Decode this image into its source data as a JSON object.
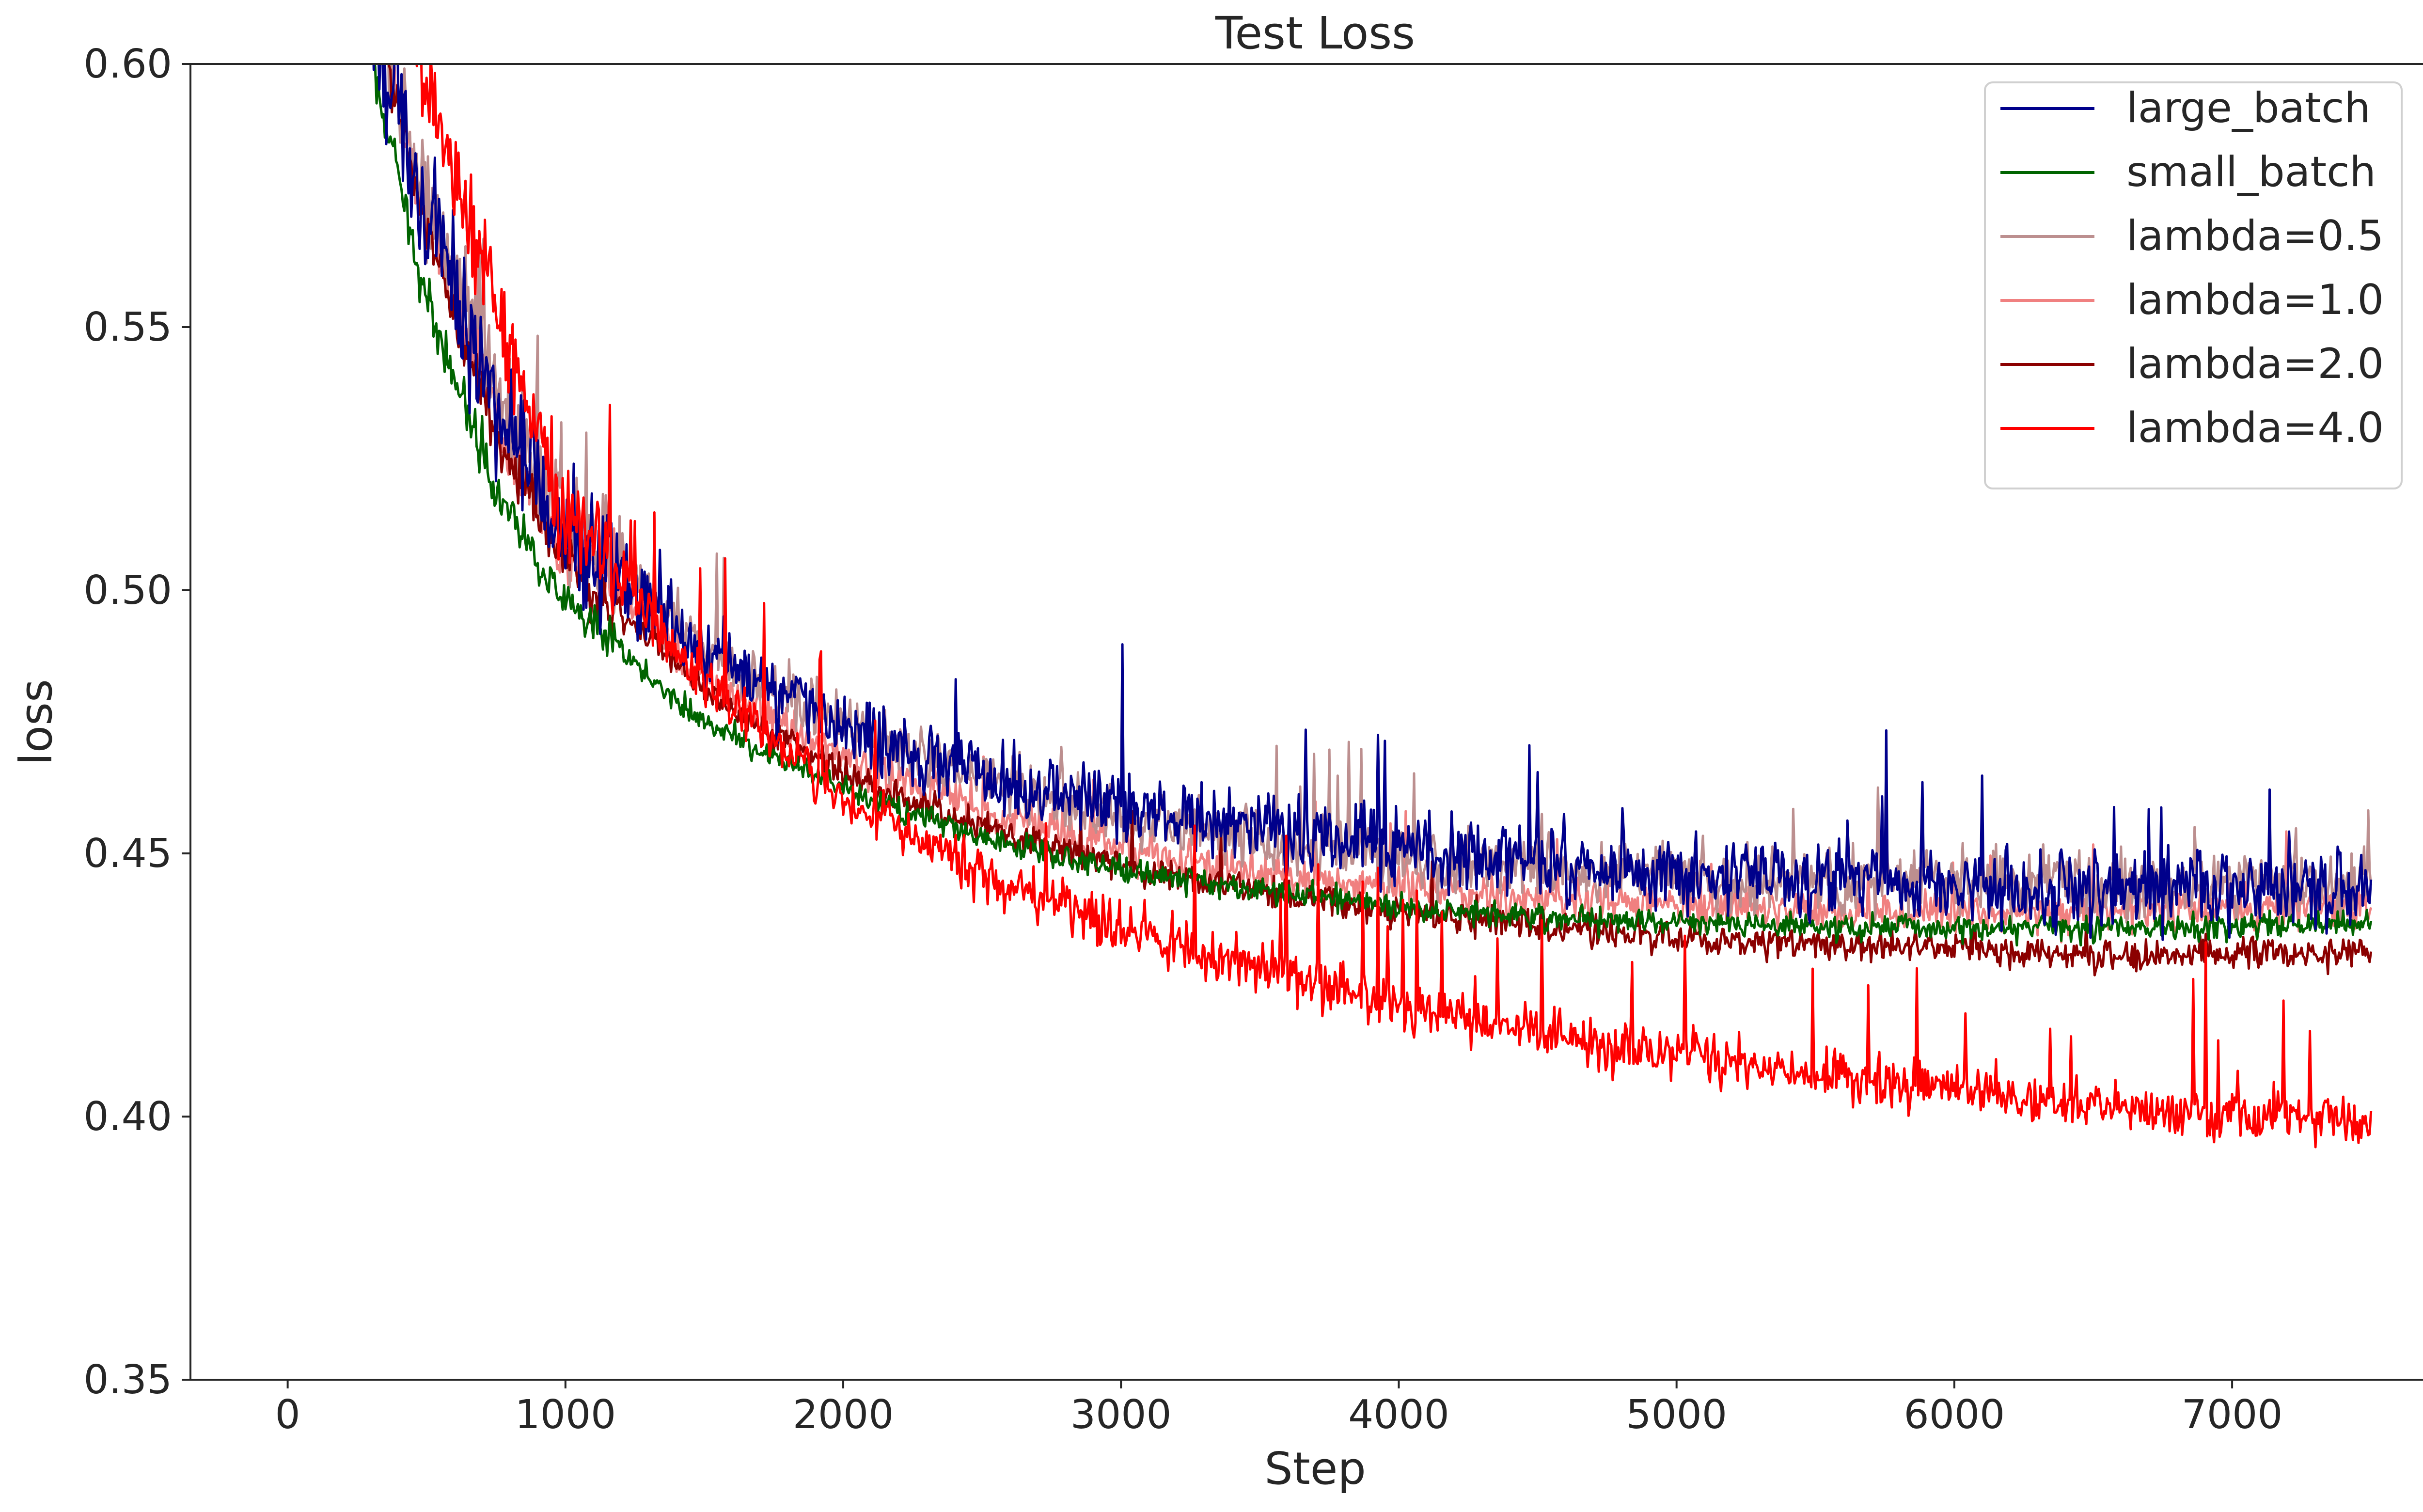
{
  "chart_data": {
    "type": "line",
    "title": "Test Loss",
    "xlabel": "Step",
    "ylabel": "loss",
    "xlim": [
      -350,
      7750
    ],
    "ylim": [
      0.35,
      0.6
    ],
    "xticks": [
      0,
      1000,
      2000,
      3000,
      4000,
      5000,
      6000,
      7000
    ],
    "xtick_labels": [
      "0",
      "1000",
      "2000",
      "3000",
      "4000",
      "5000",
      "6000",
      "7000"
    ],
    "yticks": [
      0.35,
      0.4,
      0.45,
      0.5,
      0.55,
      0.6
    ],
    "ytick_labels": [
      "0.35",
      "0.40",
      "0.45",
      "0.50",
      "0.55",
      "0.60"
    ],
    "grid": false,
    "legend_position": "top-right",
    "x_end": 7500,
    "series": [
      {
        "name": "large_batch",
        "color": "#00008b",
        "noise": 0.007,
        "spike_rate": 0.03,
        "spike_height": 0.018,
        "points": [
          [
            300,
            0.61
          ],
          [
            500,
            0.57
          ],
          [
            750,
            0.535
          ],
          [
            1000,
            0.51
          ],
          [
            1500,
            0.488
          ],
          [
            2000,
            0.474
          ],
          [
            2500,
            0.465
          ],
          [
            3000,
            0.459
          ],
          [
            3500,
            0.455
          ],
          [
            4000,
            0.451
          ],
          [
            4500,
            0.448
          ],
          [
            5000,
            0.446
          ],
          [
            5500,
            0.445
          ],
          [
            6000,
            0.444
          ],
          [
            6500,
            0.443
          ],
          [
            7000,
            0.443
          ],
          [
            7500,
            0.443
          ]
        ]
      },
      {
        "name": "small_batch",
        "color": "#006400",
        "noise": 0.0025,
        "spike_rate": 0.0,
        "spike_height": 0.0,
        "points": [
          [
            300,
            0.6
          ],
          [
            500,
            0.555
          ],
          [
            750,
            0.52
          ],
          [
            1000,
            0.497
          ],
          [
            1500,
            0.475
          ],
          [
            2000,
            0.462
          ],
          [
            2500,
            0.453
          ],
          [
            3000,
            0.447
          ],
          [
            3500,
            0.443
          ],
          [
            4000,
            0.44
          ],
          [
            4500,
            0.438
          ],
          [
            5000,
            0.437
          ],
          [
            5500,
            0.436
          ],
          [
            6000,
            0.436
          ],
          [
            6500,
            0.436
          ],
          [
            7000,
            0.436
          ],
          [
            7500,
            0.437
          ]
        ]
      },
      {
        "name": "lambda=0.5",
        "color": "#bc8f8f",
        "noise": 0.006,
        "spike_rate": 0.025,
        "spike_height": 0.014,
        "points": [
          [
            320,
            0.61
          ],
          [
            500,
            0.575
          ],
          [
            750,
            0.54
          ],
          [
            1000,
            0.513
          ],
          [
            1500,
            0.489
          ],
          [
            2000,
            0.474
          ],
          [
            2500,
            0.464
          ],
          [
            3000,
            0.457
          ],
          [
            3500,
            0.452
          ],
          [
            4000,
            0.449
          ],
          [
            4500,
            0.447
          ],
          [
            5000,
            0.446
          ],
          [
            5500,
            0.445
          ],
          [
            6000,
            0.445
          ],
          [
            6500,
            0.444
          ],
          [
            7000,
            0.444
          ],
          [
            7500,
            0.444
          ]
        ]
      },
      {
        "name": "lambda=1.0",
        "color": "#f08080",
        "noise": 0.004,
        "spike_rate": 0.015,
        "spike_height": 0.01,
        "points": [
          [
            320,
            0.61
          ],
          [
            500,
            0.57
          ],
          [
            750,
            0.533
          ],
          [
            1000,
            0.508
          ],
          [
            1500,
            0.484
          ],
          [
            2000,
            0.468
          ],
          [
            2500,
            0.458
          ],
          [
            3000,
            0.451
          ],
          [
            3500,
            0.446
          ],
          [
            4000,
            0.443
          ],
          [
            4500,
            0.441
          ],
          [
            5000,
            0.44
          ],
          [
            5500,
            0.439
          ],
          [
            6000,
            0.439
          ],
          [
            6500,
            0.439
          ],
          [
            7000,
            0.439
          ],
          [
            7500,
            0.44
          ]
        ]
      },
      {
        "name": "lambda=2.0",
        "color": "#8b0000",
        "noise": 0.003,
        "spike_rate": 0.008,
        "spike_height": 0.008,
        "points": [
          [
            320,
            0.61
          ],
          [
            500,
            0.568
          ],
          [
            750,
            0.53
          ],
          [
            1000,
            0.505
          ],
          [
            1500,
            0.481
          ],
          [
            2000,
            0.465
          ],
          [
            2500,
            0.455
          ],
          [
            3000,
            0.448
          ],
          [
            3500,
            0.443
          ],
          [
            4000,
            0.439
          ],
          [
            4500,
            0.436
          ],
          [
            5000,
            0.434
          ],
          [
            5500,
            0.433
          ],
          [
            6000,
            0.432
          ],
          [
            6500,
            0.431
          ],
          [
            7000,
            0.431
          ],
          [
            7500,
            0.431
          ]
        ]
      },
      {
        "name": "lambda=4.0",
        "color": "#ff0000",
        "noise": 0.005,
        "spike_rate": 0.03,
        "spike_height": 0.02,
        "points": [
          [
            420,
            0.61
          ],
          [
            600,
            0.58
          ],
          [
            800,
            0.545
          ],
          [
            1000,
            0.515
          ],
          [
            1500,
            0.483
          ],
          [
            2000,
            0.46
          ],
          [
            2500,
            0.446
          ],
          [
            3000,
            0.436
          ],
          [
            3500,
            0.428
          ],
          [
            4000,
            0.421
          ],
          [
            4500,
            0.416
          ],
          [
            5000,
            0.412
          ],
          [
            5500,
            0.408
          ],
          [
            6000,
            0.405
          ],
          [
            6500,
            0.402
          ],
          [
            7000,
            0.4
          ],
          [
            7500,
            0.399
          ]
        ]
      }
    ]
  }
}
